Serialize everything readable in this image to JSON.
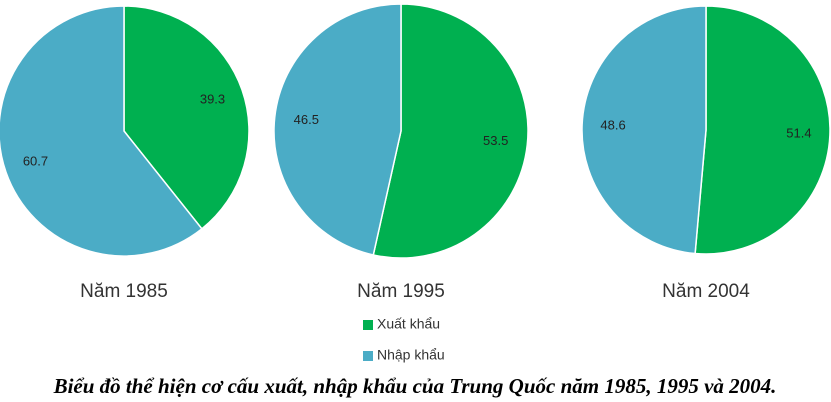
{
  "chart_data": [
    {
      "type": "pie",
      "title": "Năm 1985",
      "categories": [
        "Xuất khẩu",
        "Nhập khẩu"
      ],
      "values": [
        39.3,
        60.7
      ],
      "colors": [
        "#00b050",
        "#4bacc6"
      ]
    },
    {
      "type": "pie",
      "title": "Năm 1995",
      "categories": [
        "Xuất khẩu",
        "Nhập khẩu"
      ],
      "values": [
        53.5,
        46.5
      ],
      "colors": [
        "#00b050",
        "#4bacc6"
      ]
    },
    {
      "type": "pie",
      "title": "Năm 2004",
      "categories": [
        "Xuất khẩu",
        "Nhập khẩu"
      ],
      "values": [
        51.4,
        48.6
      ],
      "colors": [
        "#00b050",
        "#4bacc6"
      ]
    }
  ],
  "caption": "Biểu đồ thể hiện cơ cấu xuất, nhập khẩu của Trung Quốc năm 1985, 1995 và 2004."
}
